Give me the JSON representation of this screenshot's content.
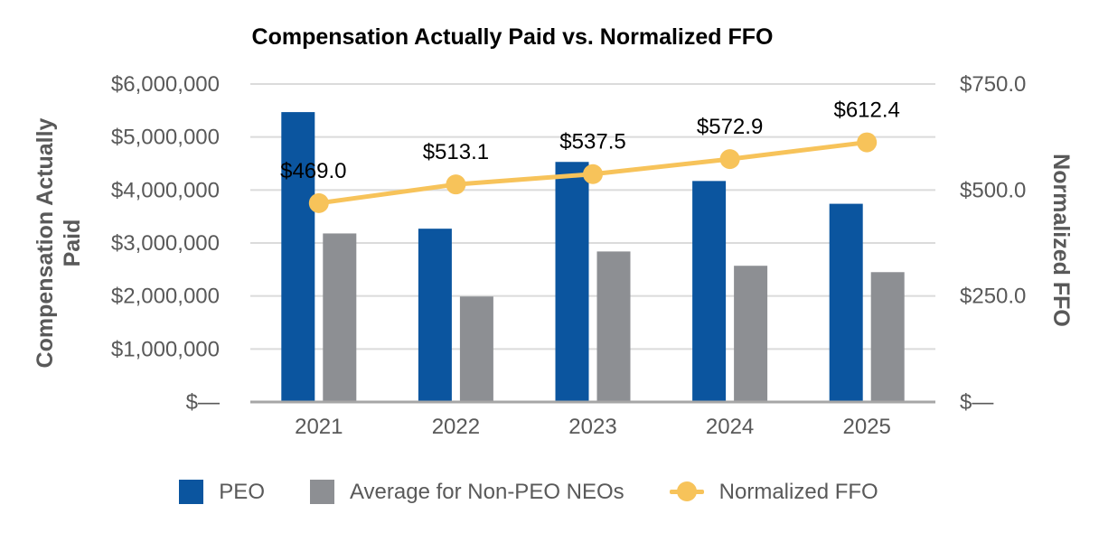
{
  "title": "Compensation Actually Paid vs. Normalized FFO",
  "left_axis": {
    "title": "Compensation Actually Paid",
    "max": 6000000,
    "ticks": [
      {
        "value": 0,
        "label": "$—"
      },
      {
        "value": 1000000,
        "label": "$1,000,000"
      },
      {
        "value": 2000000,
        "label": "$2,000,000"
      },
      {
        "value": 3000000,
        "label": "$3,000,000"
      },
      {
        "value": 4000000,
        "label": "$4,000,000"
      },
      {
        "value": 5000000,
        "label": "$5,000,000"
      },
      {
        "value": 6000000,
        "label": "$6,000,000"
      }
    ]
  },
  "right_axis": {
    "title": "Normalized FFO",
    "max": 750,
    "ticks": [
      {
        "value": 0,
        "label": "$—"
      },
      {
        "value": 250,
        "label": "$250.0"
      },
      {
        "value": 500,
        "label": "$500.0"
      },
      {
        "value": 750,
        "label": "$750.0"
      }
    ]
  },
  "legend": {
    "items": [
      {
        "label": "PEO",
        "type": "square",
        "color_key": "peo"
      },
      {
        "label": "Average for Non-PEO NEOs",
        "type": "square",
        "color_key": "non_peo"
      },
      {
        "label": "Normalized FFO",
        "type": "line-dot",
        "color_key": "ffo"
      }
    ]
  },
  "colors": {
    "peo": "#0B559F",
    "non_peo": "#8D8F93",
    "ffo": "#F7C35A",
    "axis_text": "#595959",
    "data_label_text": "#000000",
    "gridline": "#DBDBDB",
    "axis_line": "#A6A6A6",
    "title_text": "#000000"
  },
  "chart_data": {
    "type": "bar+line",
    "title": "Compensation Actually Paid vs. Normalized FFO",
    "categories": [
      "2021",
      "2022",
      "2023",
      "2024",
      "2025"
    ],
    "series": [
      {
        "name": "PEO",
        "type": "bar",
        "axis": "left",
        "values": [
          5470000,
          3270000,
          4530000,
          4170000,
          3740000
        ]
      },
      {
        "name": "Average for Non-PEO NEOs",
        "type": "bar",
        "axis": "left",
        "values": [
          3180000,
          1990000,
          2840000,
          2570000,
          2450000
        ]
      },
      {
        "name": "Normalized FFO",
        "type": "line",
        "axis": "right",
        "values": [
          469.0,
          513.1,
          537.5,
          572.9,
          612.4
        ],
        "labels": [
          "$469.0",
          "$513.1",
          "$537.5",
          "$572.9",
          "$612.4"
        ]
      }
    ],
    "left_ylabel": "Compensation Actually Paid",
    "right_ylabel": "Normalized FFO",
    "left_ylim": [
      0,
      6000000
    ],
    "right_ylim": [
      0,
      750
    ],
    "grid": true,
    "legend_position": "bottom"
  }
}
